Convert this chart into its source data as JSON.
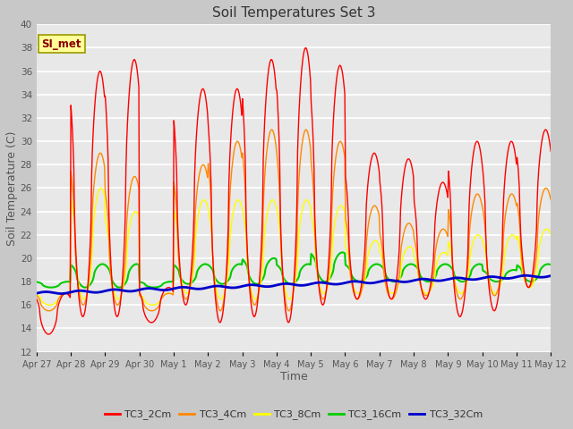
{
  "title": "Soil Temperatures Set 3",
  "xlabel": "Time",
  "ylabel": "Soil Temperature (C)",
  "ylim": [
    12,
    40
  ],
  "yticks": [
    12,
    14,
    16,
    18,
    20,
    22,
    24,
    26,
    28,
    30,
    32,
    34,
    36,
    38,
    40
  ],
  "fig_bg_color": "#c8c8c8",
  "plot_bg_color": "#e8e8e8",
  "series_colors": {
    "TC3_2Cm": "#ff0000",
    "TC3_4Cm": "#ff8800",
    "TC3_8Cm": "#ffff00",
    "TC3_16Cm": "#00cc00",
    "TC3_32Cm": "#0000cc"
  },
  "series_widths": {
    "TC3_2Cm": 1.0,
    "TC3_4Cm": 1.0,
    "TC3_8Cm": 1.0,
    "TC3_16Cm": 1.5,
    "TC3_32Cm": 2.0
  },
  "annotation_text": "SI_met",
  "annotation_color": "#8b0000",
  "annotation_bg": "#ffff99",
  "tick_labels": [
    "Apr 27",
    "Apr 28",
    "Apr 29",
    "Apr 30",
    "May 1",
    "May 2",
    "May 3",
    "May 4",
    "May 5",
    "May 6",
    "May 7",
    "May 8",
    "May 9",
    "May 10",
    "May 11",
    "May 12"
  ],
  "n_points_per_day": 48,
  "n_days": 15
}
